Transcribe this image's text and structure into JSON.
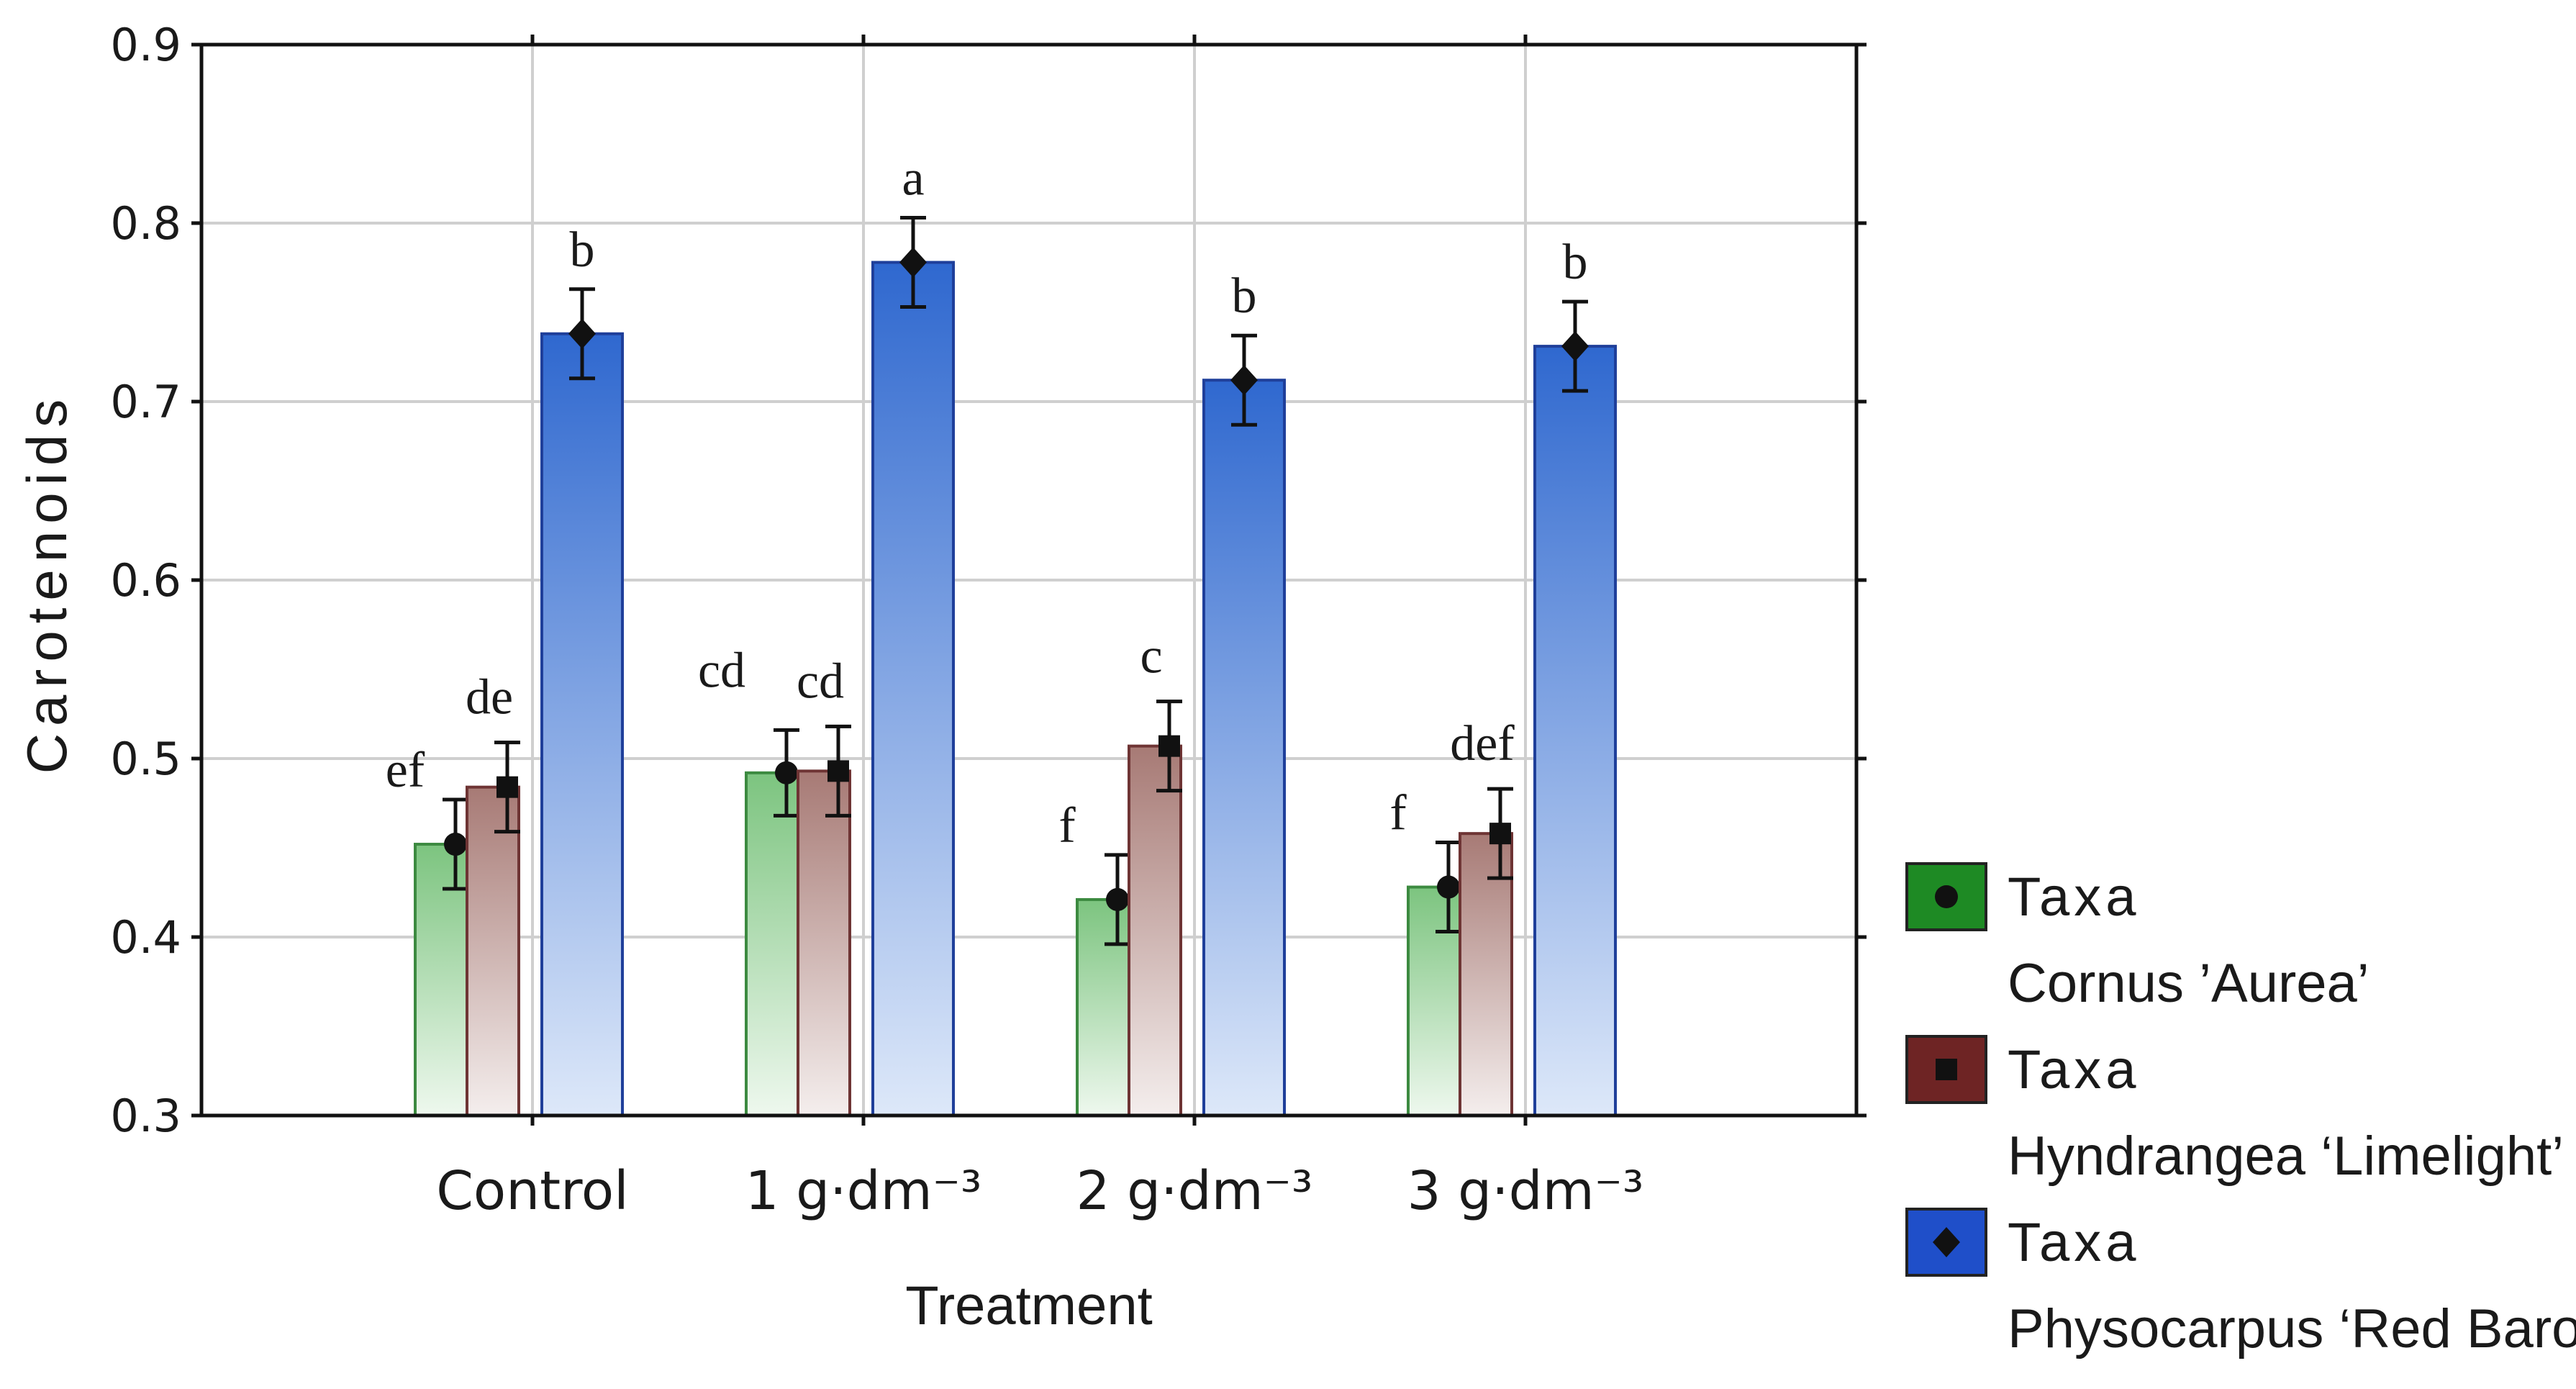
{
  "chart_data": {
    "type": "bar",
    "title": "",
    "xlabel": "Treatment",
    "ylabel": "Carotenoids",
    "ylim": [
      0.3,
      0.9
    ],
    "yticks": [
      "0.3",
      "0.4",
      "0.5",
      "0.6",
      "0.7",
      "0.8",
      "0.9"
    ],
    "grid": true,
    "categories": [
      "Control",
      "1 g·dm⁻³",
      "2 g·dm⁻³",
      "3 g·dm⁻³"
    ],
    "series": [
      {
        "name": "Cornus 'Aurea'",
        "legend_title": "Taxa",
        "legend_label": "Cornus ’Aurea’",
        "color": "#4caf50",
        "values": [
          0.452,
          0.492,
          0.421,
          0.428
        ],
        "error": [
          0.025,
          0.024,
          0.025,
          0.025
        ],
        "letters": [
          "ef",
          "cd",
          "f",
          "f"
        ]
      },
      {
        "name": "Hyndrangea 'Limelight'",
        "legend_title": "Taxa",
        "legend_label": "Hyndrangea ‘Limelight’",
        "color": "#8b4a4a",
        "values": [
          0.484,
          0.493,
          0.507,
          0.458
        ],
        "error": [
          0.025,
          0.025,
          0.025,
          0.025
        ],
        "letters": [
          "de",
          "cd",
          "c",
          "def"
        ]
      },
      {
        "name": "Physocarpus 'Red Baron'",
        "legend_title": "Taxa",
        "legend_label": "Physocarpus ‘Red Baron’",
        "color": "#2d63d6",
        "values": [
          0.738,
          0.778,
          0.712,
          0.731
        ],
        "error": [
          0.025,
          0.025,
          0.025,
          0.025
        ],
        "letters": [
          "b",
          "a",
          "b",
          "b"
        ]
      }
    ],
    "legend_position": "bottom-right"
  }
}
